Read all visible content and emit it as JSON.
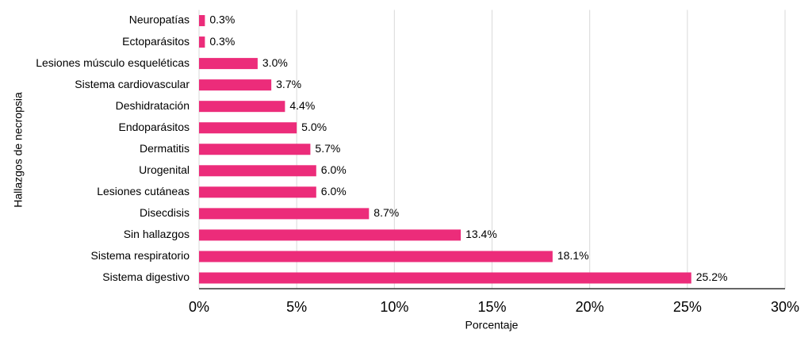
{
  "chart_data": {
    "type": "bar",
    "orientation": "horizontal",
    "x_label": "Porcentaje",
    "y_label": "Hallazgos de necropsia",
    "categories": [
      "Neuropatías",
      "Ectoparásitos",
      "Lesiones músculo esqueléticas",
      "Sistema cardiovascular",
      "Deshidratación",
      "Endoparásitos",
      "Dermatitis",
      "Urogenital",
      "Lesiones cutáneas",
      "Disecdisis",
      "Sin hallazgos",
      "Sistema respiratorio",
      "Sistema digestivo"
    ],
    "values": [
      0.3,
      0.3,
      3.0,
      3.7,
      4.4,
      5.0,
      5.7,
      6.0,
      6.0,
      8.7,
      13.4,
      18.1,
      25.2
    ],
    "value_labels": [
      "0.3%",
      "0.3%",
      "3.0%",
      "3.7%",
      "4.4%",
      "5.0%",
      "5.7%",
      "6.0%",
      "6.0%",
      "8.7%",
      "13.4%",
      "18.1%",
      "25.2%"
    ],
    "color": "#ec2c7a",
    "xlim": [
      0,
      30
    ],
    "xticks": [
      {
        "value": 0,
        "label": "0%"
      },
      {
        "value": 5,
        "label": "5%"
      },
      {
        "value": 10,
        "label": "10%"
      },
      {
        "value": 15,
        "label": "15%"
      },
      {
        "value": 20,
        "label": "20%"
      },
      {
        "value": 25,
        "label": "25%"
      },
      {
        "value": 30,
        "label": "30%"
      }
    ],
    "grid": true
  }
}
